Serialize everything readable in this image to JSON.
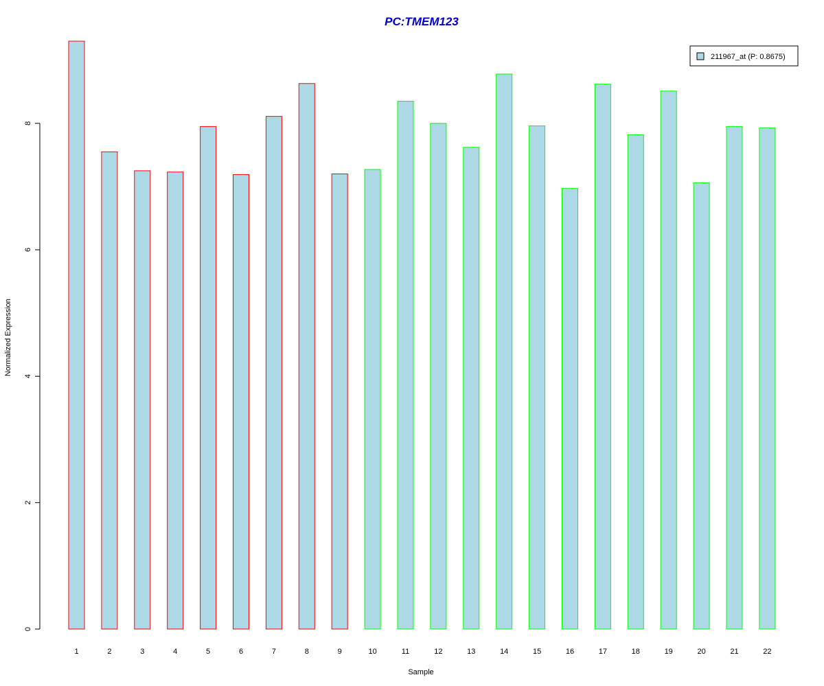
{
  "chart_data": {
    "type": "bar",
    "title": "PC:TMEM123",
    "xlabel": "Sample",
    "ylabel": "Normalized Expression",
    "categories": [
      "1",
      "2",
      "3",
      "4",
      "5",
      "6",
      "7",
      "8",
      "9",
      "10",
      "11",
      "12",
      "13",
      "14",
      "15",
      "16",
      "17",
      "18",
      "19",
      "20",
      "21",
      "22"
    ],
    "series": [
      {
        "name": "211967_at (P: 0.8675)",
        "values": [
          9.3,
          7.55,
          7.25,
          7.23,
          7.95,
          7.19,
          8.11,
          8.63,
          7.2,
          7.27,
          8.35,
          8.0,
          7.62,
          8.78,
          7.96,
          6.97,
          8.62,
          7.82,
          8.51,
          7.06,
          7.95,
          7.93
        ]
      }
    ],
    "group": [
      "a",
      "a",
      "a",
      "a",
      "a",
      "a",
      "a",
      "a",
      "a",
      "b",
      "b",
      "b",
      "b",
      "b",
      "b",
      "b",
      "b",
      "b",
      "b",
      "b",
      "b",
      "b"
    ],
    "yticks": [
      "0",
      "2",
      "4",
      "6",
      "8"
    ],
    "ylim": [
      0,
      9.3
    ],
    "legend_position": "top-right",
    "grid": false,
    "colors": {
      "bar_fill": "#ADD8E6",
      "group_a_border": "#FF0000",
      "group_b_border": "#00FF00",
      "title": "#0000CC",
      "axis": "#000000"
    }
  }
}
